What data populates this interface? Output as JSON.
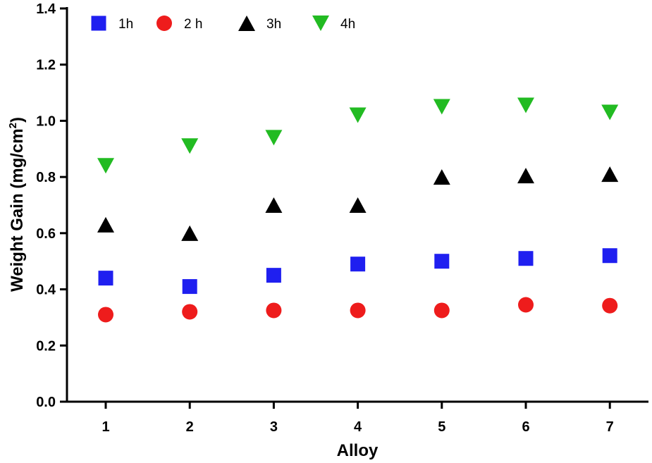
{
  "chart_data": {
    "type": "scatter",
    "title": "",
    "xlabel": "Alloy",
    "ylabel_main": "Weight Gain (mg/cm",
    "ylabel_sup": "2",
    "ylabel_end": ")",
    "categories": [
      "1",
      "2",
      "3",
      "4",
      "5",
      "6",
      "7"
    ],
    "ylim": [
      0.0,
      1.4
    ],
    "yticks": [
      "0.0",
      "0.2",
      "0.4",
      "0.6",
      "0.8",
      "1.0",
      "1.2",
      "1.4"
    ],
    "grid": false,
    "legend_position": "top-left",
    "series": [
      {
        "name": "1h",
        "marker": "square",
        "color": "#1f1ff0",
        "values": [
          0.44,
          0.41,
          0.45,
          0.49,
          0.5,
          0.51,
          0.52
        ]
      },
      {
        "name": "2 h",
        "marker": "circle",
        "color": "#ee1c1c",
        "values": [
          0.31,
          0.32,
          0.325,
          0.325,
          0.325,
          0.345,
          0.342
        ]
      },
      {
        "name": "3h",
        "marker": "triangle-up",
        "color": "#000000",
        "values": [
          0.63,
          0.6,
          0.7,
          0.7,
          0.8,
          0.805,
          0.81
        ]
      },
      {
        "name": "4h",
        "marker": "triangle-down",
        "color": "#22bb22",
        "values": [
          0.84,
          0.91,
          0.94,
          1.02,
          1.05,
          1.055,
          1.03
        ]
      }
    ]
  }
}
